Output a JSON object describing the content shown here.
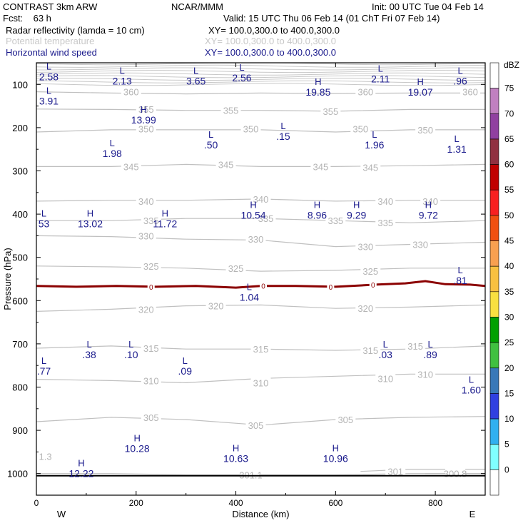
{
  "header": {
    "model": "CONTRAST  3km ARW",
    "org": "NCAR/MMM",
    "init": "Init: 00 UTC Tue 04 Feb 14",
    "fcst": "Fcst:    63 h",
    "valid": "Valid: 15 UTC Thu 06 Feb 14 (01 ChT Fri 07 Feb 14)",
    "fields": [
      {
        "name": "Radar reflectivity (lamda = 10 cm)",
        "xy": "XY= 100.0,300.0 to 400.0,300.0",
        "color": "#000000"
      },
      {
        "name": "Potential temperature",
        "xy": "XY= 100.0,300.0 to 400.0,300.0",
        "color": "#c8c8c8"
      },
      {
        "name": "Horizontal wind speed",
        "xy": "XY= 100.0,300.0 to 400.0,300.0",
        "color": "#1a1a8c"
      }
    ]
  },
  "chart_data": {
    "type": "cross-section",
    "xlabel": "Distance (km)",
    "ylabel": "Pressure (hPa)",
    "xlim": [
      0,
      900
    ],
    "ylim": [
      1050,
      50
    ],
    "x_ticks": [
      0,
      200,
      400,
      600,
      800
    ],
    "y_ticks": [
      100,
      200,
      300,
      400,
      500,
      600,
      700,
      800,
      900,
      1000
    ],
    "x_end_labels": {
      "left": "W",
      "right": "E"
    },
    "colorbar": {
      "unit": "dBZ",
      "levels": [
        "0",
        "5",
        "10",
        "15",
        "20",
        "25",
        "30",
        "35",
        "40",
        "45",
        "50",
        "55",
        "60",
        "65",
        "70",
        "75"
      ],
      "colors": [
        "#ffffff",
        "#80ffff",
        "#30b0f0",
        "#3040e0",
        "#3878b8",
        "#40c040",
        "#00a000",
        "#f8e040",
        "#f8c040",
        "#f8a050",
        "#f05010",
        "#f82020",
        "#c00000",
        "#903040",
        "#9040a0",
        "#c080c0",
        "#ffffff"
      ]
    },
    "theta_contours": [
      {
        "value": 360,
        "p": [
          [
            0,
            117
          ],
          [
            150,
            120
          ],
          [
            300,
            122
          ],
          [
            450,
            120
          ],
          [
            600,
            121
          ],
          [
            750,
            120
          ],
          [
            900,
            120
          ]
        ],
        "labels": [
          [
            190,
            117
          ],
          [
            660,
            117
          ],
          [
            870,
            117
          ]
        ]
      },
      {
        "value": 355,
        "p": [
          [
            0,
            157
          ],
          [
            150,
            158
          ],
          [
            300,
            160
          ],
          [
            450,
            160
          ],
          [
            600,
            162
          ],
          [
            750,
            158
          ],
          [
            900,
            158
          ]
        ],
        "labels": [
          [
            220,
            157
          ],
          [
            390,
            160
          ],
          [
            590,
            162
          ]
        ]
      },
      {
        "value": 350,
        "p": [
          [
            0,
            210
          ],
          [
            150,
            205
          ],
          [
            300,
            205
          ],
          [
            450,
            205
          ],
          [
            600,
            210
          ],
          [
            750,
            205
          ],
          [
            900,
            205
          ]
        ],
        "labels": [
          [
            220,
            203
          ],
          [
            430,
            203
          ],
          [
            650,
            203
          ],
          [
            780,
            205
          ]
        ]
      },
      {
        "value": 345,
        "p": [
          [
            0,
            290
          ],
          [
            150,
            290
          ],
          [
            300,
            285
          ],
          [
            450,
            290
          ],
          [
            600,
            290
          ],
          [
            750,
            288
          ],
          [
            900,
            285
          ]
        ],
        "labels": [
          [
            190,
            290
          ],
          [
            380,
            285
          ],
          [
            570,
            290
          ],
          [
            670,
            292
          ]
        ]
      },
      {
        "value": 340,
        "p": [
          [
            0,
            370
          ],
          [
            150,
            368
          ],
          [
            300,
            368
          ],
          [
            450,
            365
          ],
          [
            600,
            370
          ],
          [
            750,
            368
          ],
          [
            900,
            368
          ]
        ],
        "labels": [
          [
            220,
            370
          ],
          [
            450,
            365
          ],
          [
            700,
            370
          ],
          [
            790,
            370
          ]
        ]
      },
      {
        "value": 335,
        "p": [
          [
            0,
            415
          ],
          [
            150,
            415
          ],
          [
            300,
            410
          ],
          [
            450,
            410
          ],
          [
            600,
            415
          ],
          [
            750,
            420
          ],
          [
            900,
            415
          ]
        ],
        "labels": [
          [
            230,
            415
          ],
          [
            460,
            410
          ],
          [
            600,
            415
          ],
          [
            700,
            420
          ]
        ]
      },
      {
        "value": 330,
        "p": [
          [
            0,
            450
          ],
          [
            150,
            452
          ],
          [
            300,
            458
          ],
          [
            450,
            460
          ],
          [
            600,
            475
          ],
          [
            750,
            470
          ],
          [
            900,
            465
          ]
        ],
        "labels": [
          [
            220,
            450
          ],
          [
            440,
            458
          ],
          [
            660,
            475
          ],
          [
            770,
            470
          ]
        ]
      },
      {
        "value": 325,
        "p": [
          [
            0,
            520
          ],
          [
            150,
            522
          ],
          [
            300,
            525
          ],
          [
            450,
            532
          ],
          [
            600,
            530
          ],
          [
            750,
            525
          ],
          [
            900,
            525
          ]
        ],
        "labels": [
          [
            230,
            520
          ],
          [
            400,
            525
          ],
          [
            670,
            532
          ]
        ]
      },
      {
        "value": 320,
        "p": [
          [
            0,
            625
          ],
          [
            150,
            620
          ],
          [
            300,
            612
          ],
          [
            450,
            610
          ],
          [
            600,
            618
          ],
          [
            750,
            615
          ],
          [
            900,
            610
          ]
        ],
        "labels": [
          [
            220,
            620
          ],
          [
            360,
            612
          ],
          [
            660,
            618
          ]
        ]
      },
      {
        "value": 315,
        "p": [
          [
            0,
            710
          ],
          [
            150,
            705
          ],
          [
            300,
            712
          ],
          [
            450,
            712
          ],
          [
            600,
            715
          ],
          [
            750,
            712
          ],
          [
            900,
            705
          ]
        ],
        "labels": [
          [
            230,
            710
          ],
          [
            450,
            712
          ],
          [
            670,
            715
          ],
          [
            760,
            705
          ]
        ]
      },
      {
        "value": 310,
        "p": [
          [
            0,
            782
          ],
          [
            150,
            785
          ],
          [
            300,
            790
          ],
          [
            450,
            780
          ],
          [
            600,
            775
          ],
          [
            750,
            770
          ],
          [
            900,
            770
          ]
        ],
        "labels": [
          [
            230,
            785
          ],
          [
            450,
            790
          ],
          [
            700,
            780
          ],
          [
            780,
            770
          ]
        ]
      },
      {
        "value": 305,
        "p": [
          [
            0,
            880
          ],
          [
            150,
            870
          ],
          [
            300,
            875
          ],
          [
            450,
            888
          ],
          [
            600,
            875
          ],
          [
            750,
            870
          ],
          [
            900,
            868
          ]
        ],
        "labels": [
          [
            230,
            870
          ],
          [
            440,
            888
          ],
          [
            620,
            875
          ]
        ]
      },
      {
        "value": 301.1,
        "p": [
          [
            0,
            1000
          ],
          [
            150,
            1000
          ],
          [
            300,
            1003
          ],
          [
            450,
            1003
          ],
          [
            600,
            1003
          ],
          [
            750,
            1000
          ],
          [
            900,
            1000
          ]
        ],
        "labels": [
          [
            430,
            1003
          ]
        ]
      },
      {
        "value": 301,
        "p": [
          [
            650,
            995
          ],
          [
            750,
            990
          ],
          [
            900,
            990
          ]
        ],
        "labels": [
          [
            720,
            995
          ]
        ]
      },
      {
        "value": 300.8,
        "p": [
          [
            780,
            1000
          ],
          [
            900,
            1000
          ]
        ],
        "labels": [
          [
            840,
            1000
          ]
        ]
      }
    ],
    "extra_theta_labels": [
      [
        "1.3",
        5,
        960
      ]
    ],
    "reflectivity_zero_contour": {
      "p": [
        [
          0,
          566
        ],
        [
          80,
          568
        ],
        [
          160,
          566
        ],
        [
          240,
          568
        ],
        [
          320,
          566
        ],
        [
          400,
          570
        ],
        [
          450,
          566
        ],
        [
          520,
          566
        ],
        [
          600,
          568
        ],
        [
          680,
          563
        ],
        [
          740,
          560
        ],
        [
          780,
          555
        ],
        [
          820,
          562
        ],
        [
          870,
          563
        ],
        [
          900,
          566
        ]
      ],
      "labels": [
        [
          230,
          568
        ],
        [
          455,
          566
        ],
        [
          590,
          568
        ],
        [
          675,
          563
        ]
      ],
      "color": "#8b0000",
      "label": "0"
    },
    "surface_line": {
      "p": 1005,
      "color": "#000000"
    },
    "wind_extrema": [
      {
        "type": "L",
        "value": "2.58",
        "x": 25,
        "p": 72
      },
      {
        "type": "L",
        "value": "2.13",
        "x": 172,
        "p": 82
      },
      {
        "type": "L",
        "value": "3.65",
        "x": 320,
        "p": 82
      },
      {
        "type": "L",
        "value": "2.56",
        "x": 412,
        "p": 75
      },
      {
        "type": "L",
        "value": "2.11",
        "x": 690,
        "p": 77
      },
      {
        "type": "L",
        "value": ".96",
        "x": 850,
        "p": 82
      },
      {
        "type": "L",
        "value": "3.91",
        "x": 25,
        "p": 128
      },
      {
        "type": "H",
        "value": "19.85",
        "x": 565,
        "p": 108
      },
      {
        "type": "H",
        "value": "19.07",
        "x": 770,
        "p": 108
      },
      {
        "type": "H",
        "value": "13.99",
        "x": 215,
        "p": 172
      },
      {
        "type": "L",
        "value": ".50",
        "x": 350,
        "p": 230
      },
      {
        "type": "L",
        "value": ".15",
        "x": 495,
        "p": 210
      },
      {
        "type": "L",
        "value": "1.96",
        "x": 678,
        "p": 230
      },
      {
        "type": "L",
        "value": "1.31",
        "x": 843,
        "p": 240
      },
      {
        "type": "L",
        "value": "1.98",
        "x": 152,
        "p": 250
      },
      {
        "type": "H",
        "value": "10.54",
        "x": 435,
        "p": 392
      },
      {
        "type": "H",
        "value": "8.96",
        "x": 563,
        "p": 392
      },
      {
        "type": "H",
        "value": "9.29",
        "x": 642,
        "p": 392
      },
      {
        "type": "H",
        "value": "9.72",
        "x": 786,
        "p": 392
      },
      {
        "type": "H",
        "value": "13.02",
        "x": 108,
        "p": 412
      },
      {
        "type": "H",
        "value": "11.72",
        "x": 258,
        "p": 412
      },
      {
        "type": "L",
        "value": "53",
        "x": 15,
        "p": 412
      },
      {
        "type": "L",
        "value": ".81",
        "x": 850,
        "p": 543
      },
      {
        "type": "L",
        "value": "1.04",
        "x": 427,
        "p": 582
      },
      {
        "type": "L",
        "value": ".38",
        "x": 106,
        "p": 715
      },
      {
        "type": "L",
        "value": ".10",
        "x": 190,
        "p": 715
      },
      {
        "type": "L",
        "value": ".03",
        "x": 700,
        "p": 715
      },
      {
        "type": "L",
        "value": ".89",
        "x": 790,
        "p": 715
      },
      {
        "type": "L",
        "value": ".09",
        "x": 298,
        "p": 753
      },
      {
        "type": "L",
        "value": ".77",
        "x": 15,
        "p": 753
      },
      {
        "type": "L",
        "value": "1.60",
        "x": 872,
        "p": 797
      },
      {
        "type": "H",
        "value": "10.28",
        "x": 202,
        "p": 932
      },
      {
        "type": "H",
        "value": "10.63",
        "x": 400,
        "p": 955
      },
      {
        "type": "H",
        "value": "10.96",
        "x": 600,
        "p": 955
      },
      {
        "type": "H",
        "value": "12.22",
        "x": 90,
        "p": 990
      }
    ]
  }
}
